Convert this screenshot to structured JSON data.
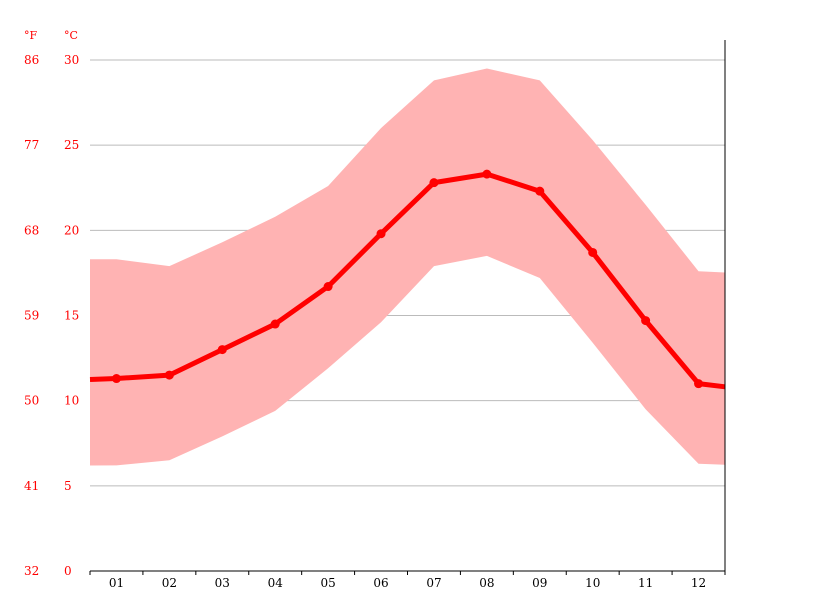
{
  "chart_data": {
    "type": "area",
    "categories": [
      "01",
      "02",
      "03",
      "04",
      "05",
      "06",
      "07",
      "08",
      "09",
      "10",
      "11",
      "12"
    ],
    "y_unit_left": "°F",
    "y_unit_right": "°C",
    "y_ticks_c": [
      0,
      5,
      10,
      15,
      20,
      25,
      30
    ],
    "y_ticks_f": [
      32,
      41,
      50,
      59,
      68,
      77,
      86
    ],
    "ylim": [
      0,
      30
    ],
    "grid": true,
    "series": [
      {
        "values": [
          11.3,
          11.5,
          13.0,
          14.5,
          16.7,
          19.8,
          22.8,
          23.3,
          22.3,
          18.7,
          14.7,
          11.0
        ]
      }
    ],
    "band_max": [
      18.3,
      17.9,
      19.3,
      20.8,
      22.6,
      26.0,
      28.8,
      29.5,
      28.8,
      25.3,
      21.5,
      17.6
    ],
    "band_min": [
      6.2,
      6.5,
      7.9,
      9.4,
      11.9,
      14.6,
      17.9,
      18.5,
      17.2,
      13.4,
      9.5,
      6.3
    ],
    "colors": {
      "line": "#ff0000",
      "band": "#ffb3b3",
      "axis_text": "#ff0000",
      "grid": "#bbbbbb"
    }
  }
}
